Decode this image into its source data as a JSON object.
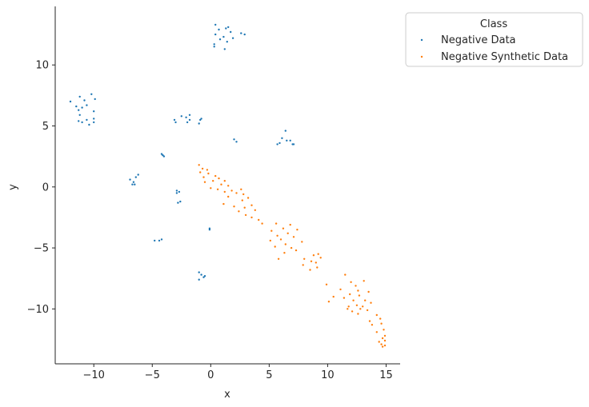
{
  "chart_data": {
    "type": "scatter",
    "xlabel": "x",
    "ylabel": "y",
    "xlim": [
      -13.3,
      16.2
    ],
    "ylim": [
      -14.5,
      14.8
    ],
    "xticks": [
      -10,
      -5,
      0,
      5,
      10,
      15
    ],
    "yticks": [
      -10,
      -5,
      0,
      5,
      10
    ],
    "xtick_labels": [
      "−10",
      "−5",
      "0",
      "5",
      "10",
      "15"
    ],
    "ytick_labels": [
      "−10",
      "−5",
      "0",
      "5",
      "10"
    ],
    "grid": false,
    "legend": {
      "title": "Class",
      "placement": "outside-top-right"
    },
    "series": [
      {
        "name": "Negative Data",
        "color": "#1f77b4",
        "points": [
          [
            0.4,
            13.3
          ],
          [
            1.5,
            13.1
          ],
          [
            1.3,
            13.0
          ],
          [
            0.7,
            12.9
          ],
          [
            1.7,
            12.7
          ],
          [
            2.6,
            12.6
          ],
          [
            2.9,
            12.5
          ],
          [
            0.4,
            12.5
          ],
          [
            1.1,
            12.3
          ],
          [
            1.9,
            12.2
          ],
          [
            0.8,
            12.1
          ],
          [
            1.4,
            11.9
          ],
          [
            0.3,
            11.7
          ],
          [
            0.3,
            11.5
          ],
          [
            1.2,
            11.3
          ],
          [
            -12.0,
            7.0
          ],
          [
            -11.2,
            7.4
          ],
          [
            -10.2,
            7.6
          ],
          [
            -10.8,
            7.1
          ],
          [
            -9.9,
            7.2
          ],
          [
            -11.5,
            6.6
          ],
          [
            -11.0,
            6.5
          ],
          [
            -10.6,
            6.7
          ],
          [
            -11.3,
            6.3
          ],
          [
            -10.0,
            6.2
          ],
          [
            -11.2,
            5.9
          ],
          [
            -10.6,
            5.5
          ],
          [
            -10.0,
            5.6
          ],
          [
            -11.0,
            5.3
          ],
          [
            -10.4,
            5.1
          ],
          [
            -11.3,
            5.4
          ],
          [
            -10.0,
            5.3
          ],
          [
            -2.5,
            5.8
          ],
          [
            -2.1,
            5.7
          ],
          [
            -1.8,
            5.9
          ],
          [
            -3.1,
            5.5
          ],
          [
            -1.8,
            5.5
          ],
          [
            -0.8,
            5.6
          ],
          [
            -2.0,
            5.3
          ],
          [
            -3.0,
            5.3
          ],
          [
            -1.0,
            5.2
          ],
          [
            -0.9,
            5.5
          ],
          [
            6.4,
            4.6
          ],
          [
            6.1,
            4.0
          ],
          [
            6.5,
            3.8
          ],
          [
            5.7,
            3.5
          ],
          [
            5.9,
            3.6
          ],
          [
            7.0,
            3.5
          ],
          [
            6.8,
            3.8
          ],
          [
            7.1,
            3.5
          ],
          [
            2.0,
            3.9
          ],
          [
            2.2,
            3.7
          ],
          [
            -4.2,
            2.7
          ],
          [
            -4.1,
            2.6
          ],
          [
            -4.0,
            2.5
          ],
          [
            -6.2,
            1.0
          ],
          [
            -6.4,
            0.8
          ],
          [
            -6.9,
            0.6
          ],
          [
            -6.6,
            0.4
          ],
          [
            -6.7,
            0.2
          ],
          [
            -6.5,
            0.2
          ],
          [
            -2.9,
            -0.3
          ],
          [
            -2.7,
            -0.4
          ],
          [
            -2.9,
            -0.5
          ],
          [
            -2.6,
            -1.2
          ],
          [
            -2.8,
            -1.3
          ],
          [
            -0.1,
            -3.4
          ],
          [
            -0.1,
            -3.5
          ],
          [
            -4.8,
            -4.4
          ],
          [
            -4.4,
            -4.4
          ],
          [
            -4.2,
            -4.3
          ],
          [
            -1.0,
            -7.0
          ],
          [
            -0.8,
            -7.2
          ],
          [
            -0.6,
            -7.4
          ],
          [
            -0.5,
            -7.3
          ],
          [
            -1.0,
            -7.6
          ]
        ]
      },
      {
        "name": "Negative Synthetic Data",
        "color": "#ff7f0e",
        "points": [
          [
            -1.0,
            1.8
          ],
          [
            -0.7,
            1.5
          ],
          [
            -0.3,
            1.4
          ],
          [
            -0.9,
            1.2
          ],
          [
            -0.2,
            1.1
          ],
          [
            0.4,
            0.9
          ],
          [
            -0.6,
            0.8
          ],
          [
            0.7,
            0.7
          ],
          [
            0.2,
            0.5
          ],
          [
            -0.5,
            0.4
          ],
          [
            1.2,
            0.5
          ],
          [
            0.9,
            0.2
          ],
          [
            1.5,
            0.1
          ],
          [
            0.0,
            -0.1
          ],
          [
            0.6,
            -0.2
          ],
          [
            1.8,
            -0.3
          ],
          [
            2.6,
            -0.2
          ],
          [
            1.2,
            -0.4
          ],
          [
            2.2,
            -0.5
          ],
          [
            2.8,
            -0.6
          ],
          [
            1.5,
            -0.8
          ],
          [
            3.2,
            -0.9
          ],
          [
            2.7,
            -1.1
          ],
          [
            1.1,
            -1.4
          ],
          [
            3.5,
            -1.5
          ],
          [
            2.0,
            -1.6
          ],
          [
            2.9,
            -1.7
          ],
          [
            3.8,
            -1.9
          ],
          [
            2.4,
            -2.0
          ],
          [
            3.0,
            -2.3
          ],
          [
            3.5,
            -2.5
          ],
          [
            4.1,
            -2.7
          ],
          [
            4.4,
            -3.0
          ],
          [
            5.6,
            -3.0
          ],
          [
            6.8,
            -3.1
          ],
          [
            6.2,
            -3.4
          ],
          [
            5.2,
            -3.6
          ],
          [
            7.4,
            -3.5
          ],
          [
            6.6,
            -3.8
          ],
          [
            5.7,
            -4.0
          ],
          [
            7.1,
            -4.1
          ],
          [
            6.0,
            -4.3
          ],
          [
            5.1,
            -4.4
          ],
          [
            7.8,
            -4.5
          ],
          [
            6.4,
            -4.7
          ],
          [
            5.5,
            -4.9
          ],
          [
            6.9,
            -5.0
          ],
          [
            7.3,
            -5.2
          ],
          [
            6.3,
            -5.4
          ],
          [
            8.8,
            -5.6
          ],
          [
            9.2,
            -5.5
          ],
          [
            8.0,
            -5.9
          ],
          [
            9.4,
            -5.8
          ],
          [
            5.8,
            -5.9
          ],
          [
            8.6,
            -6.1
          ],
          [
            9.0,
            -6.2
          ],
          [
            7.9,
            -6.4
          ],
          [
            9.1,
            -6.6
          ],
          [
            8.5,
            -6.8
          ],
          [
            11.5,
            -7.2
          ],
          [
            9.9,
            -8.0
          ],
          [
            12.0,
            -7.8
          ],
          [
            13.1,
            -7.7
          ],
          [
            12.4,
            -8.1
          ],
          [
            11.1,
            -8.4
          ],
          [
            12.6,
            -8.5
          ],
          [
            13.5,
            -8.6
          ],
          [
            11.9,
            -8.8
          ],
          [
            12.7,
            -8.9
          ],
          [
            10.5,
            -9.0
          ],
          [
            11.4,
            -9.1
          ],
          [
            12.2,
            -9.3
          ],
          [
            13.2,
            -9.3
          ],
          [
            10.1,
            -9.4
          ],
          [
            13.7,
            -9.5
          ],
          [
            11.8,
            -9.8
          ],
          [
            12.5,
            -9.7
          ],
          [
            13.0,
            -9.8
          ],
          [
            11.7,
            -10.0
          ],
          [
            12.8,
            -10.0
          ],
          [
            12.1,
            -10.2
          ],
          [
            13.4,
            -10.1
          ],
          [
            12.6,
            -10.4
          ],
          [
            14.2,
            -10.5
          ],
          [
            14.5,
            -10.8
          ],
          [
            13.6,
            -11.0
          ],
          [
            13.8,
            -11.3
          ],
          [
            14.6,
            -11.2
          ],
          [
            14.8,
            -11.7
          ],
          [
            14.2,
            -11.9
          ],
          [
            14.9,
            -12.2
          ],
          [
            14.7,
            -12.4
          ],
          [
            14.9,
            -12.6
          ],
          [
            14.4,
            -12.7
          ],
          [
            14.6,
            -12.9
          ],
          [
            14.7,
            -13.1
          ],
          [
            14.9,
            -13.0
          ]
        ]
      }
    ]
  }
}
